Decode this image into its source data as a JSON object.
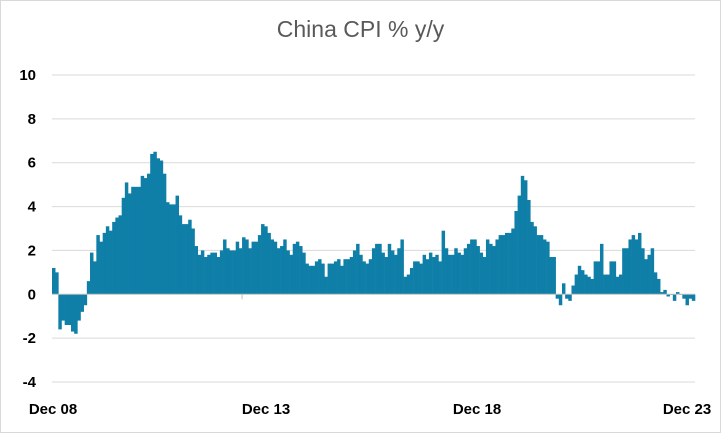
{
  "chart_data": {
    "type": "bar",
    "title": "China CPI % y/y",
    "xlabel": "",
    "ylabel": "",
    "ylim": [
      -4,
      10
    ],
    "yticks": [
      -4,
      -2,
      0,
      2,
      4,
      6,
      8,
      10
    ],
    "xtick_labels": [
      "Dec 08",
      "Dec 13",
      "Dec 18",
      "Dec 23"
    ],
    "x_start": "2008-12",
    "x_end": "2023-12",
    "grid": true,
    "legend": "none",
    "bar_color": "#0f7fa8",
    "series": [
      {
        "values": [
          1.2,
          1.0,
          -1.6,
          -1.2,
          -1.4,
          -1.4,
          -1.7,
          -1.8,
          -1.2,
          -0.8,
          -0.5,
          0.6,
          1.9,
          1.5,
          2.7,
          2.4,
          2.8,
          3.1,
          2.9,
          3.3,
          3.5,
          3.6,
          4.4,
          5.1,
          4.6,
          4.9,
          4.9,
          4.9,
          5.4,
          5.3,
          5.5,
          6.4,
          6.5,
          6.2,
          6.1,
          5.5,
          4.2,
          4.1,
          4.1,
          4.5,
          3.6,
          3.2,
          3.2,
          3.4,
          3.0,
          2.2,
          1.8,
          2.0,
          1.7,
          1.8,
          1.9,
          1.9,
          1.7,
          2.0,
          2.5,
          2.1,
          2.0,
          2.0,
          2.4,
          2.1,
          2.6,
          2.5,
          2.1,
          2.4,
          2.4,
          2.7,
          3.2,
          3.1,
          2.8,
          2.5,
          2.4,
          2.1,
          2.2,
          2.5,
          2.0,
          1.8,
          2.3,
          2.4,
          2.2,
          1.9,
          1.4,
          1.3,
          1.3,
          1.5,
          1.6,
          1.4,
          0.8,
          1.4,
          1.4,
          1.5,
          1.6,
          1.3,
          1.6,
          1.6,
          1.7,
          2.0,
          2.3,
          1.8,
          1.5,
          1.4,
          1.6,
          2.1,
          2.3,
          2.3,
          1.9,
          1.7,
          2.3,
          2.0,
          1.8,
          2.1,
          2.5,
          0.8,
          0.9,
          1.2,
          1.5,
          1.5,
          1.4,
          1.8,
          1.6,
          1.9,
          1.7,
          1.8,
          1.5,
          2.9,
          2.1,
          1.8,
          1.8,
          2.1,
          1.9,
          1.8,
          2.1,
          2.3,
          2.5,
          2.5,
          2.2,
          1.9,
          1.7,
          2.5,
          2.3,
          2.2,
          2.5,
          2.7,
          2.7,
          2.8,
          2.8,
          3.0,
          3.8,
          4.5,
          5.4,
          5.2,
          4.3,
          3.3,
          3.1,
          2.7,
          2.7,
          2.5,
          2.4,
          1.7,
          1.7,
          -0.2,
          -0.5,
          0.5,
          -0.2,
          -0.3,
          0.4,
          0.9,
          1.3,
          1.1,
          0.9,
          0.8,
          0.7,
          1.5,
          1.5,
          2.3,
          0.9,
          0.9,
          1.5,
          1.5,
          0.8,
          0.9,
          2.1,
          2.1,
          2.5,
          2.7,
          2.5,
          2.8,
          2.1,
          1.6,
          1.8,
          2.1,
          1.0,
          0.7,
          0.1,
          0.2,
          -0.1,
          0.0,
          -0.3,
          0.1,
          0.0,
          -0.2,
          -0.5,
          -0.2,
          -0.3
        ]
      }
    ]
  }
}
